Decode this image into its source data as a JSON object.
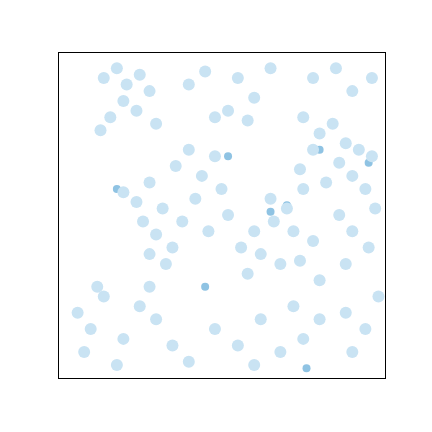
{
  "chart_data": {
    "type": "scatter",
    "xlim": [
      0,
      100
    ],
    "ylim": [
      0,
      100
    ],
    "tick_labels": false,
    "grid": false,
    "marker": "circle",
    "series": [
      {
        "color": "#c9e3f3",
        "x": [
          14,
          18,
          21,
          25,
          20,
          16,
          24,
          28,
          30,
          13,
          40,
          45,
          55,
          60,
          65,
          52,
          48,
          58,
          78,
          85,
          90,
          96,
          75,
          80,
          84,
          88,
          92,
          96,
          78,
          86,
          90,
          82,
          94,
          74,
          20,
          24,
          28,
          32,
          26,
          30,
          35,
          38,
          42,
          44,
          48,
          36,
          40,
          50,
          46,
          33,
          28,
          52,
          56,
          60,
          62,
          66,
          70,
          72,
          65,
          75,
          68,
          78,
          80,
          58,
          74,
          86,
          90,
          95,
          88,
          97,
          6,
          10,
          14,
          8,
          20,
          25,
          30,
          35,
          40,
          18,
          28,
          12,
          48,
          55,
          62,
          68,
          75,
          60,
          72,
          80,
          88,
          94,
          98,
          90
        ],
        "values": [
          92,
          95,
          90,
          93,
          85,
          80,
          82,
          88,
          78,
          76,
          90,
          94,
          92,
          86,
          95,
          82,
          80,
          79,
          92,
          95,
          88,
          92,
          80,
          75,
          78,
          72,
          70,
          68,
          70,
          66,
          62,
          60,
          58,
          64,
          57,
          54,
          60,
          52,
          48,
          44,
          40,
          48,
          55,
          62,
          68,
          65,
          70,
          58,
          45,
          35,
          38,
          50,
          40,
          45,
          38,
          48,
          52,
          45,
          55,
          58,
          35,
          42,
          30,
          32,
          36,
          50,
          45,
          40,
          35,
          52,
          20,
          15,
          25,
          8,
          12,
          22,
          18,
          10,
          5,
          4,
          28,
          28,
          15,
          10,
          18,
          8,
          12,
          4,
          22,
          18,
          20,
          15,
          25,
          8
        ]
      },
      {
        "color": "#8fc3e3",
        "x": [
          52,
          65,
          70,
          18,
          45,
          80,
          95,
          76
        ],
        "values": [
          68,
          51,
          53,
          58,
          28,
          70,
          66,
          3
        ]
      }
    ]
  }
}
